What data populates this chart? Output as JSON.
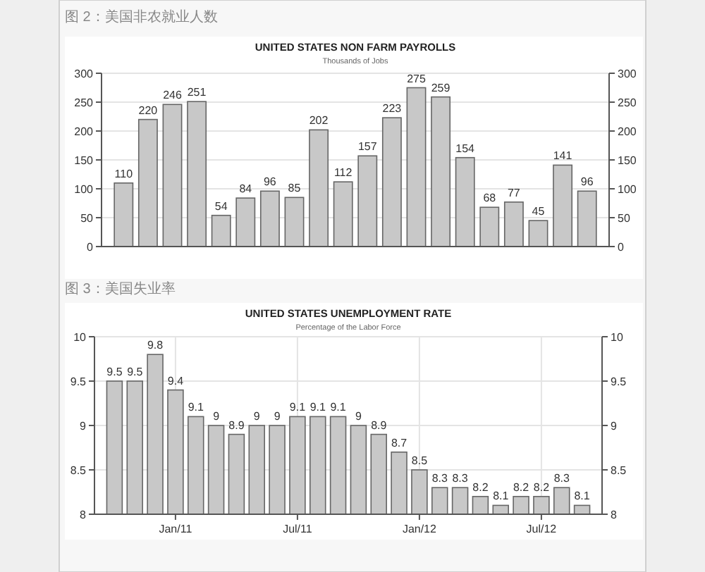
{
  "chart_data": [
    {
      "type": "bar",
      "title": "UNITED STATES NON FARM PAYROLLS",
      "subtitle": "Thousands of Jobs",
      "annotations": [
        "图 2：美国非农就业人数"
      ],
      "categories": [
        null,
        null,
        null,
        null,
        null,
        null,
        null,
        null,
        null,
        null,
        null,
        null,
        null,
        null,
        null,
        null,
        null,
        null,
        null,
        null
      ],
      "values": [
        110,
        220,
        246,
        251,
        54,
        84,
        96,
        85,
        202,
        112,
        157,
        223,
        275,
        259,
        154,
        68,
        77,
        45,
        141,
        96
      ],
      "color": "#c8c8c8",
      "ylim": [
        0,
        300
      ],
      "yticks": [
        0,
        50,
        100,
        150,
        200,
        250,
        300
      ],
      "y2lim": [
        0,
        300
      ],
      "y2ticks": [
        0,
        50,
        100,
        150,
        200,
        250,
        300
      ],
      "grid": "y",
      "data_labels": true
    },
    {
      "type": "bar",
      "title": "UNITED STATES UNEMPLOYMENT RATE",
      "subtitle": "Percentage of the Labor Force",
      "annotations": [
        "图 3：美国失业率"
      ],
      "categories": [
        null,
        null,
        null,
        "Jan/11",
        null,
        null,
        null,
        null,
        null,
        "Jul/11",
        null,
        null,
        null,
        null,
        null,
        "Jan/12",
        null,
        null,
        null,
        null,
        null,
        "Jul/12",
        null,
        null
      ],
      "values": [
        9.5,
        9.5,
        9.8,
        9.4,
        9.1,
        9,
        8.9,
        9,
        9,
        9.1,
        9.1,
        9.1,
        9,
        8.9,
        8.7,
        8.5,
        8.3,
        8.3,
        8.2,
        8.1,
        8.2,
        8.2,
        8.3,
        8.1
      ],
      "color": "#c8c8c8",
      "ylim": [
        8,
        10
      ],
      "yticks": [
        8,
        8.5,
        9,
        9.5,
        10
      ],
      "y2lim": [
        8,
        10
      ],
      "y2ticks": [
        8,
        8.5,
        9,
        9.5,
        10
      ],
      "grid": true,
      "data_labels": true
    }
  ]
}
